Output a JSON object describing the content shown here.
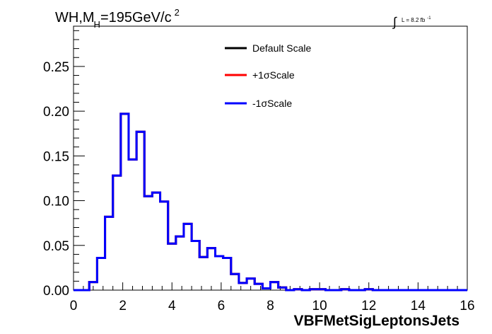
{
  "chart_data": {
    "type": "line",
    "title": {
      "main": "WH,M",
      "sub": "H",
      "mass": "=195GeV/c",
      "sup": "2"
    },
    "luminosity": {
      "integral": "∫",
      "text": "L = 8.2 fb",
      "sup": "-1"
    },
    "xlabel": "VBFMetSigLeptonsJets",
    "ylabel": "",
    "xlim": [
      0,
      16
    ],
    "ylim": [
      0,
      0.295
    ],
    "x_ticks": [
      "0",
      "2",
      "4",
      "6",
      "8",
      "10",
      "12",
      "14",
      "16"
    ],
    "y_ticks": [
      "0.00",
      "0.05",
      "0.10",
      "0.15",
      "0.20",
      "0.25"
    ],
    "grid": false,
    "legend_position": "top-center",
    "bin_edges": [
      0,
      0.32,
      0.64,
      0.96,
      1.28,
      1.6,
      1.92,
      2.24,
      2.56,
      2.88,
      3.2,
      3.52,
      3.84,
      4.16,
      4.48,
      4.8,
      5.12,
      5.44,
      5.76,
      6.08,
      6.4,
      6.72,
      7.04,
      7.36,
      7.68,
      8.0,
      8.32,
      8.64,
      8.96,
      9.28,
      9.6,
      9.92,
      10.24,
      10.56,
      10.88,
      11.2,
      11.52,
      11.84,
      12.16,
      12.48,
      12.8,
      13.12,
      13.44,
      13.76,
      14.08,
      14.4,
      14.72,
      15.04,
      15.36,
      15.68,
      16.0
    ],
    "series": [
      {
        "name": "Default Scale",
        "color": "#000000",
        "values": [
          0,
          0,
          0.009,
          0.036,
          0.082,
          0.128,
          0.197,
          0.146,
          0.177,
          0.105,
          0.109,
          0.099,
          0.052,
          0.06,
          0.074,
          0.055,
          0.037,
          0.047,
          0.038,
          0.036,
          0.018,
          0.008,
          0.013,
          0.007,
          0.002,
          0.009,
          0.003,
          0.0,
          0.001,
          0.0,
          0.001,
          0.001,
          0.0,
          0.0,
          0.001,
          0.0,
          0.0,
          0.001,
          0.0,
          0.0,
          0.0,
          0.0,
          0.0,
          0.0,
          0.0,
          0.0,
          0.0,
          0.0,
          0.0,
          0.0
        ]
      },
      {
        "name": "+1σScale",
        "color": "#ff0000",
        "values": [
          0,
          0,
          0.009,
          0.036,
          0.082,
          0.128,
          0.197,
          0.146,
          0.177,
          0.105,
          0.109,
          0.099,
          0.052,
          0.06,
          0.074,
          0.055,
          0.037,
          0.047,
          0.038,
          0.036,
          0.018,
          0.008,
          0.013,
          0.007,
          0.002,
          0.009,
          0.003,
          0.0,
          0.001,
          0.0,
          0.001,
          0.001,
          0.0,
          0.0,
          0.001,
          0.0,
          0.0,
          0.001,
          0.0,
          0.0,
          0.0,
          0.0,
          0.0,
          0.0,
          0.0,
          0.0,
          0.0,
          0.0,
          0.0,
          0.0
        ]
      },
      {
        "name": "-1σScale",
        "color": "#0000ff",
        "values": [
          0,
          0,
          0.009,
          0.036,
          0.082,
          0.128,
          0.197,
          0.146,
          0.177,
          0.105,
          0.109,
          0.099,
          0.052,
          0.06,
          0.074,
          0.055,
          0.037,
          0.047,
          0.038,
          0.036,
          0.018,
          0.008,
          0.013,
          0.007,
          0.002,
          0.009,
          0.003,
          0.0,
          0.001,
          0.0,
          0.001,
          0.001,
          0.0,
          0.0,
          0.001,
          0.0,
          0.0,
          0.001,
          0.0,
          0.0,
          0.0,
          0.0,
          0.0,
          0.0,
          0.0,
          0.0,
          0.0,
          0.0,
          0.0,
          0.0
        ]
      }
    ]
  }
}
